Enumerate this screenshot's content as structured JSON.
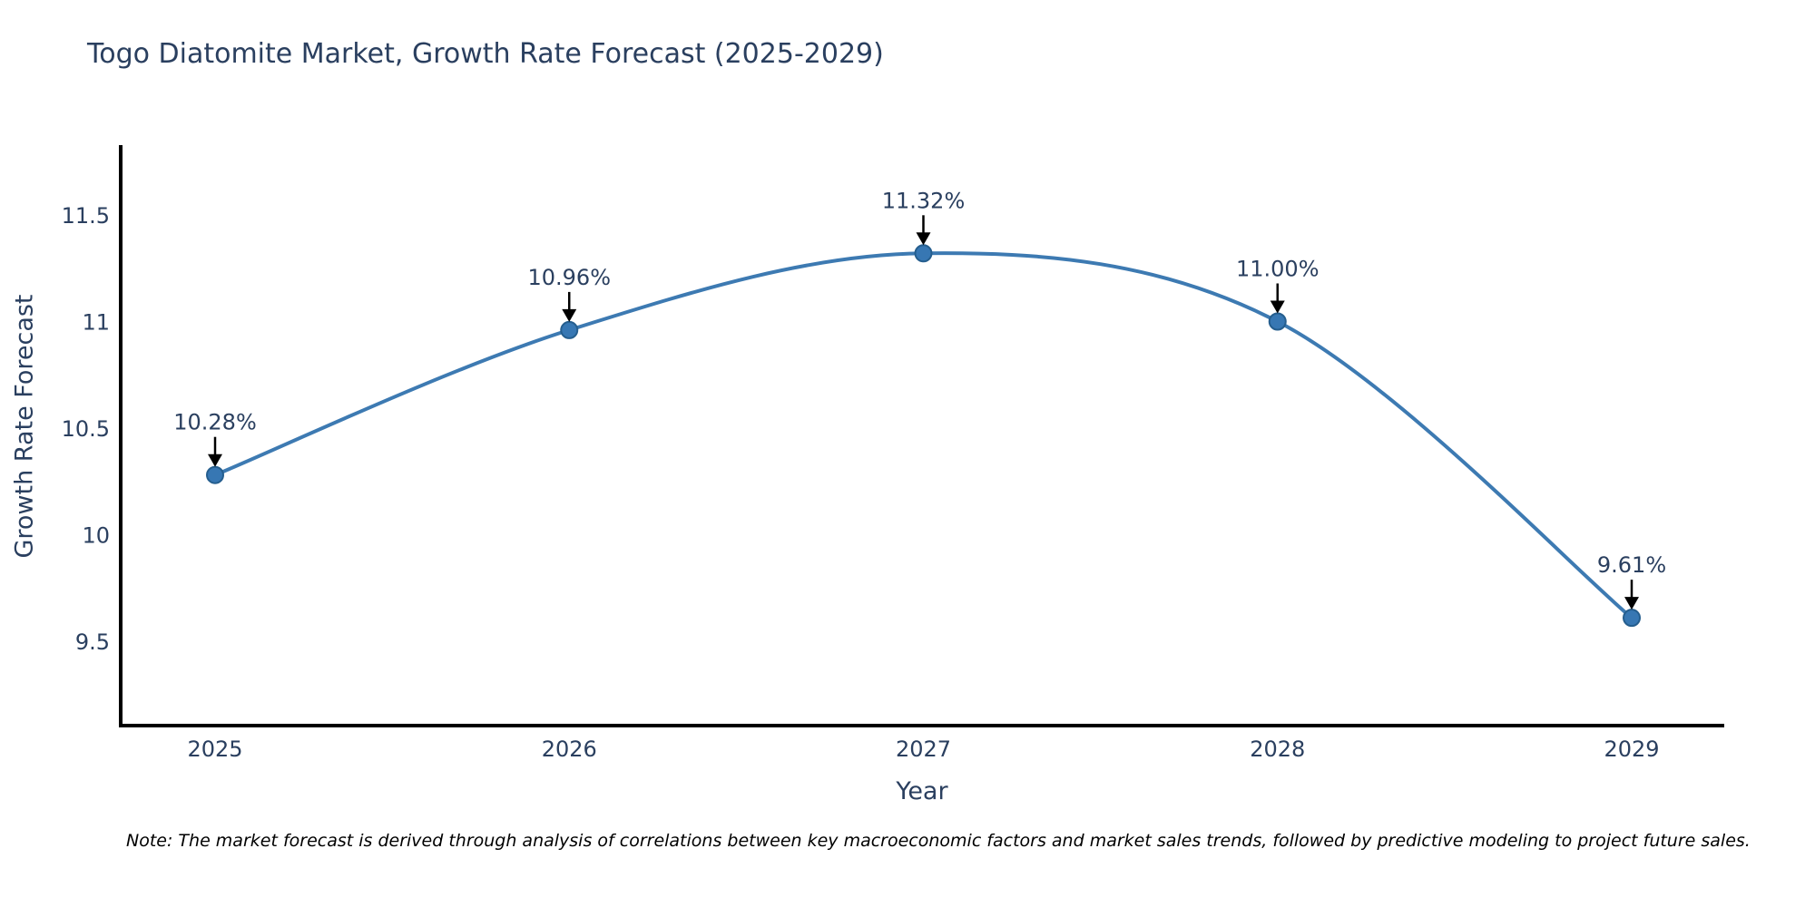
{
  "chart": {
    "title": "Togo Diatomite Market, Growth Rate Forecast (2025-2029)",
    "xlabel": "Year",
    "ylabel": "Growth Rate Forecast",
    "note": "Note: The market forecast is derived through analysis of correlations between key macroeconomic factors and market sales trends, followed by predictive modeling to project future sales."
  },
  "chart_data": {
    "type": "line",
    "title": "Togo Diatomite Market, Growth Rate Forecast (2025-2029)",
    "xlabel": "Year",
    "ylabel": "Growth Rate Forecast",
    "categories": [
      "2025",
      "2026",
      "2027",
      "2028",
      "2029"
    ],
    "values": [
      10.28,
      10.96,
      11.32,
      11.0,
      9.61
    ],
    "point_labels": [
      "10.28%",
      "10.96%",
      "11.32%",
      "11.00%",
      "9.61%"
    ],
    "yticks": [
      "9.5",
      "10",
      "10.5",
      "11",
      "11.5"
    ],
    "ytick_values": [
      9.5,
      10,
      10.5,
      11,
      11.5
    ],
    "ylim": [
      9.1,
      11.83
    ],
    "line_shape": "spline",
    "grid": false,
    "legend_position": "none",
    "markers": true,
    "annotation_arrows": true,
    "colors": {
      "line": "#3d7ab2",
      "marker_fill": "#3777b3",
      "marker_stroke": "#255e8e",
      "axis": "#000000",
      "text": "#2a3f5f",
      "arrow": "#000000",
      "note_text": "#000000"
    }
  }
}
